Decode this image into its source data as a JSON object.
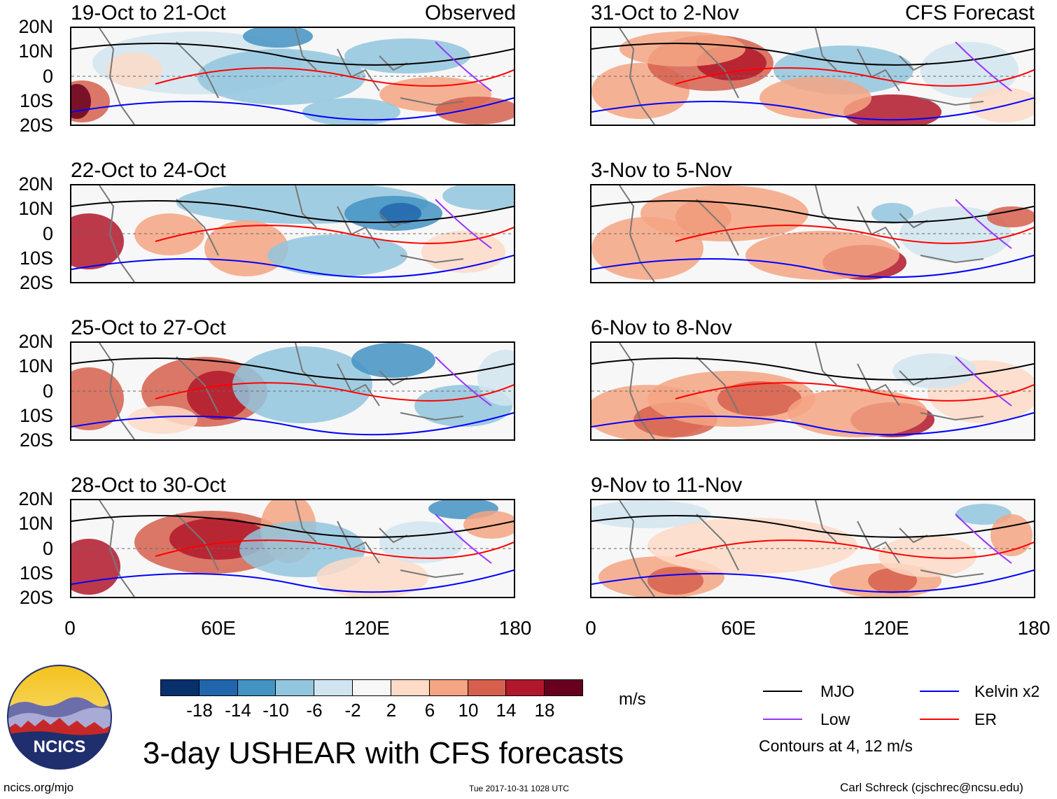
{
  "panels": {
    "left": [
      {
        "title": "19-Oct to 21-Oct",
        "label": "Observed",
        "pattern": "obs1"
      },
      {
        "title": "22-Oct to 24-Oct",
        "label": "",
        "pattern": "obs2"
      },
      {
        "title": "25-Oct to 27-Oct",
        "label": "",
        "pattern": "obs3"
      },
      {
        "title": "28-Oct to 30-Oct",
        "label": "",
        "pattern": "obs4"
      }
    ],
    "right": [
      {
        "title": "31-Oct to 2-Nov",
        "label": "CFS Forecast",
        "pattern": "fc1"
      },
      {
        "title": "3-Nov to 5-Nov",
        "label": "",
        "pattern": "fc2"
      },
      {
        "title": "6-Nov to 8-Nov",
        "label": "",
        "pattern": "fc3"
      },
      {
        "title": "9-Nov to 11-Nov",
        "label": "",
        "pattern": "fc4"
      }
    ]
  },
  "axes": {
    "y_labels": [
      "20N",
      "10N",
      "0",
      "10S",
      "20S"
    ],
    "x_labels": [
      "0",
      "60E",
      "120E",
      "180"
    ]
  },
  "colorbar": {
    "ticks": [
      "-18",
      "-14",
      "-10",
      "-6",
      "-2",
      "2",
      "6",
      "10",
      "14",
      "18"
    ],
    "unit": "m/s",
    "colors": [
      "#08306b",
      "#2166ac",
      "#4393c3",
      "#92c5de",
      "#d1e5f0",
      "#f7f7f7",
      "#fddbc7",
      "#f4a582",
      "#d6604d",
      "#b2182b",
      "#67001f"
    ]
  },
  "legend": {
    "mjo": "MJO",
    "kelvin": "Kelvin x2",
    "low": "Low",
    "er": "ER",
    "contours": "Contours at 4, 12 m/s",
    "colors": {
      "mjo": "#000000",
      "kelvin": "#0000ff",
      "low": "#9933ff",
      "er": "#ff0000"
    }
  },
  "footer": {
    "title": "3-day USHEAR with CFS forecasts",
    "url": "ncics.org/mjo",
    "timestamp": "Tue 2017-10-31 1028 UTC",
    "author": "Carl Schreck (cjschrec@ncsu.edu)",
    "logo_text": "NCICS"
  }
}
